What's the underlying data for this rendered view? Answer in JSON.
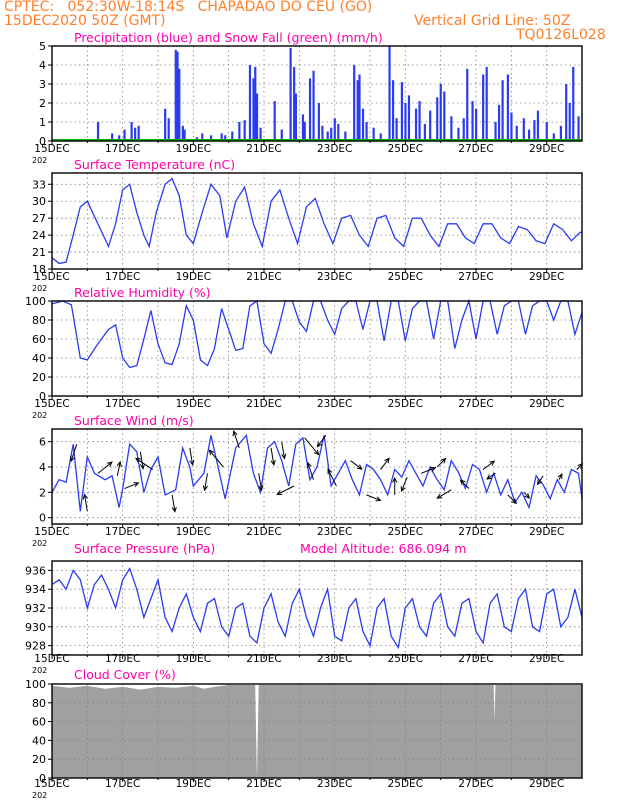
{
  "header": {
    "line1": "CPTEC:   052:30W-18:14S   CHAPADAO DO CEU (GO)",
    "line2_left": "15DEC2020 50Z (GMT)",
    "line2_right": "Vertical Grid Line: 50Z",
    "code": "TQ0126L028"
  },
  "colors": {
    "header": "#ff7f2a",
    "title": "#ff00aa",
    "series": "#2b3cf0",
    "snow": "#00b000",
    "cloud": "#a0a0a0",
    "arrow": "#000000",
    "grid": "#808080"
  },
  "x_ticks": [
    "15DEC",
    "17DEC",
    "19DEC",
    "21DEC",
    "23DEC",
    "25DEC",
    "27DEC",
    "29DEC"
  ],
  "x_tick_suffix": "202",
  "chart_data": [
    {
      "id": "precip",
      "type": "bar",
      "title": "Precipitation (blue) and Snow Fall (green) (mm/h)",
      "ylim": [
        0,
        5
      ],
      "yticks": [
        "0",
        "1",
        "2",
        "3",
        "4",
        "5"
      ],
      "xlim_days": [
        15,
        30
      ],
      "series": [
        {
          "name": "Precipitation",
          "x": [
            16.3,
            16.7,
            16.9,
            17.05,
            17.25,
            17.35,
            17.45,
            18.2,
            18.3,
            18.5,
            18.55,
            18.6,
            18.7,
            18.75,
            19.1,
            19.25,
            19.5,
            19.8,
            19.9,
            20.1,
            20.3,
            20.45,
            20.6,
            20.7,
            20.75,
            20.8,
            20.9,
            21.3,
            21.5,
            21.75,
            21.85,
            21.9,
            22.1,
            22.15,
            22.3,
            22.4,
            22.55,
            22.65,
            22.8,
            22.9,
            23.0,
            23.1,
            23.3,
            23.55,
            23.65,
            23.7,
            23.8,
            23.9,
            24.1,
            24.3,
            24.55,
            24.65,
            24.75,
            24.9,
            25.0,
            25.1,
            25.3,
            25.4,
            25.55,
            25.7,
            25.9,
            26.0,
            26.1,
            26.3,
            26.5,
            26.65,
            26.75,
            26.9,
            27.0,
            27.2,
            27.3,
            27.55,
            27.65,
            27.75,
            27.9,
            28.0,
            28.15,
            28.35,
            28.5,
            28.65,
            28.75,
            29.0,
            29.2,
            29.4,
            29.55,
            29.65,
            29.75,
            29.9
          ],
          "values": [
            1.0,
            0.4,
            0.3,
            0.6,
            1.0,
            0.7,
            0.8,
            1.7,
            1.2,
            4.8,
            4.7,
            3.8,
            0.8,
            0.6,
            0.2,
            0.4,
            0.3,
            0.4,
            0.3,
            0.5,
            1.0,
            1.1,
            4.0,
            3.3,
            3.9,
            2.5,
            0.7,
            2.1,
            0.6,
            4.9,
            3.9,
            2.5,
            1.4,
            1.0,
            3.3,
            3.7,
            2.0,
            0.8,
            0.5,
            0.7,
            1.2,
            0.9,
            0.5,
            4.0,
            3.2,
            3.5,
            1.7,
            1.0,
            0.7,
            0.4,
            5.0,
            3.2,
            1.2,
            3.1,
            2.0,
            2.4,
            1.7,
            2.1,
            0.9,
            1.6,
            2.3,
            3.0,
            2.6,
            1.3,
            0.7,
            1.2,
            3.8,
            2.1,
            1.7,
            3.5,
            3.9,
            1.0,
            1.9,
            3.2,
            3.5,
            1.5,
            0.8,
            1.2,
            0.6,
            1.1,
            1.6,
            1.0,
            0.4,
            0.8,
            3.0,
            2.0,
            3.9,
            1.3
          ]
        },
        {
          "name": "Snow Fall",
          "x": [
            15,
            30
          ],
          "values": [
            0,
            0
          ]
        }
      ]
    },
    {
      "id": "temp",
      "type": "line",
      "title": "Surface Temperature (nC)",
      "ylim": [
        18,
        35
      ],
      "yticks": [
        "18",
        "21",
        "24",
        "27",
        "30",
        "33"
      ],
      "series": [
        {
          "name": "Surface Temperature",
          "x": [
            15.0,
            15.2,
            15.4,
            15.6,
            15.8,
            16.0,
            16.3,
            16.6,
            16.8,
            17.0,
            17.2,
            17.4,
            17.6,
            17.75,
            17.95,
            18.2,
            18.4,
            18.6,
            18.8,
            19.0,
            19.25,
            19.5,
            19.75,
            19.95,
            20.2,
            20.45,
            20.7,
            20.95,
            21.2,
            21.45,
            21.7,
            21.95,
            22.2,
            22.45,
            22.7,
            22.95,
            23.2,
            23.45,
            23.7,
            23.95,
            24.2,
            24.45,
            24.7,
            24.95,
            25.2,
            25.45,
            25.7,
            25.95,
            26.2,
            26.45,
            26.7,
            26.95,
            27.2,
            27.45,
            27.7,
            27.95,
            28.2,
            28.45,
            28.7,
            28.95,
            29.2,
            29.45,
            29.7,
            29.95,
            30.0
          ],
          "values": [
            20.0,
            19.0,
            19.2,
            24.0,
            29.0,
            30.0,
            26.0,
            22.0,
            26.0,
            32.0,
            33.0,
            28.0,
            24.0,
            22.0,
            28.0,
            33.0,
            34.0,
            31.0,
            24.0,
            22.5,
            28.0,
            33.0,
            31.0,
            23.5,
            30.0,
            32.5,
            26.0,
            22.0,
            30.0,
            32.0,
            27.0,
            22.5,
            29.0,
            30.5,
            26.0,
            22.5,
            27.0,
            27.5,
            24.0,
            22.0,
            27.0,
            27.5,
            23.5,
            22.0,
            27.0,
            27.0,
            24.0,
            22.0,
            26.0,
            26.0,
            23.5,
            22.5,
            26.0,
            26.0,
            23.5,
            22.5,
            25.5,
            25.0,
            23.0,
            22.5,
            26.0,
            25.0,
            23.0,
            24.5,
            24.5
          ]
        }
      ]
    },
    {
      "id": "rh",
      "type": "line",
      "title": "Relative Humidity (%)",
      "ylim": [
        0,
        100
      ],
      "yticks": [
        "0",
        "20",
        "40",
        "60",
        "80",
        "100"
      ],
      "series": [
        {
          "name": "Relative Humidity",
          "x": [
            15.0,
            15.3,
            15.55,
            15.8,
            16.0,
            16.3,
            16.6,
            16.8,
            17.0,
            17.2,
            17.4,
            17.6,
            17.8,
            18.0,
            18.2,
            18.4,
            18.6,
            18.8,
            19.0,
            19.2,
            19.4,
            19.6,
            19.8,
            20.0,
            20.2,
            20.4,
            20.6,
            20.8,
            21.0,
            21.2,
            21.4,
            21.6,
            21.8,
            22.0,
            22.2,
            22.4,
            22.6,
            22.8,
            23.0,
            23.2,
            23.4,
            23.6,
            23.8,
            24.0,
            24.2,
            24.4,
            24.6,
            24.8,
            25.0,
            25.2,
            25.4,
            25.6,
            25.8,
            26.0,
            26.2,
            26.4,
            26.6,
            26.8,
            27.0,
            27.2,
            27.4,
            27.6,
            27.8,
            28.0,
            28.2,
            28.4,
            28.6,
            28.8,
            29.0,
            29.2,
            29.4,
            29.6,
            29.8,
            30.0
          ],
          "values": [
            97,
            100,
            96,
            40,
            38,
            55,
            70,
            75,
            40,
            30,
            32,
            60,
            90,
            55,
            35,
            33,
            55,
            95,
            80,
            38,
            32,
            50,
            92,
            70,
            48,
            50,
            95,
            100,
            55,
            45,
            70,
            100,
            100,
            78,
            68,
            100,
            100,
            80,
            65,
            92,
            100,
            100,
            70,
            100,
            100,
            58,
            100,
            100,
            58,
            92,
            100,
            100,
            60,
            100,
            100,
            50,
            80,
            100,
            60,
            100,
            100,
            65,
            95,
            100,
            100,
            65,
            95,
            100,
            100,
            80,
            100,
            100,
            65,
            88
          ]
        }
      ]
    },
    {
      "id": "wind",
      "type": "line",
      "title": "Surface Wind (m/s)",
      "ylim": [
        -0.5,
        7
      ],
      "yticks": [
        "0",
        "2",
        "4",
        "6"
      ],
      "series": [
        {
          "name": "Surface Wind",
          "x": [
            15.0,
            15.2,
            15.4,
            15.6,
            15.8,
            16.0,
            16.2,
            16.5,
            16.7,
            16.9,
            17.0,
            17.2,
            17.4,
            17.6,
            17.8,
            18.0,
            18.2,
            18.5,
            18.7,
            18.9,
            19.0,
            19.3,
            19.5,
            19.7,
            19.9,
            20.2,
            20.5,
            20.7,
            20.9,
            21.1,
            21.3,
            21.5,
            21.7,
            21.9,
            22.1,
            22.3,
            22.5,
            22.7,
            22.9,
            23.1,
            23.3,
            23.5,
            23.7,
            23.9,
            24.1,
            24.3,
            24.5,
            24.7,
            24.9,
            25.1,
            25.3,
            25.5,
            25.7,
            25.9,
            26.1,
            26.3,
            26.5,
            26.7,
            26.9,
            27.1,
            27.3,
            27.5,
            27.7,
            27.9,
            28.1,
            28.3,
            28.5,
            28.7,
            28.9,
            29.1,
            29.3,
            29.5,
            29.7,
            29.9,
            30.0
          ],
          "values": [
            2.0,
            3.0,
            2.8,
            5.8,
            0.5,
            4.8,
            3.5,
            3.0,
            3.3,
            0.8,
            2.3,
            5.8,
            5.2,
            2.0,
            3.8,
            4.8,
            1.8,
            2.2,
            5.5,
            4.0,
            2.5,
            3.5,
            6.5,
            4.0,
            1.5,
            5.5,
            6.5,
            3.5,
            2.0,
            5.5,
            6.0,
            4.5,
            2.5,
            5.8,
            6.3,
            3.0,
            4.0,
            6.5,
            2.5,
            3.5,
            4.5,
            3.0,
            1.8,
            4.2,
            3.8,
            3.0,
            1.8,
            3.8,
            3.2,
            4.5,
            3.5,
            2.5,
            4.0,
            3.0,
            2.2,
            4.5,
            3.6,
            2.3,
            4.2,
            3.8,
            2.0,
            3.5,
            1.8,
            3.0,
            1.2,
            2.0,
            0.8,
            3.3,
            2.6,
            1.5,
            3.0,
            2.0,
            3.8,
            3.5,
            1.5
          ]
        }
      ],
      "vectors": {
        "x": [
          15.7,
          16.0,
          16.3,
          16.85,
          17.05,
          17.5,
          17.85,
          18.4,
          18.9,
          19.4,
          19.85,
          20.3,
          20.85,
          21.2,
          21.5,
          21.85,
          22.15,
          22.4,
          22.75,
          23.05,
          23.45,
          23.9,
          24.3,
          24.7,
          25.05,
          25.45,
          25.9,
          26.3,
          26.8,
          27.2,
          27.55,
          27.9,
          28.35,
          28.9,
          29.35,
          29.85
        ],
        "u": [
          -0.2,
          -0.1,
          0.5,
          0.1,
          0.5,
          0.1,
          -0.6,
          0.1,
          0.1,
          -0.1,
          -0.5,
          -0.2,
          0.1,
          0.1,
          0.1,
          -0.6,
          0.5,
          -0.2,
          -0.3,
          -0.3,
          0.4,
          0.5,
          0.3,
          0.0,
          -0.2,
          0.5,
          0.3,
          -0.5,
          -0.3,
          0.4,
          -0.3,
          0.3,
          0.2,
          -0.2,
          0.1,
          0.2
        ],
        "v": [
          -0.6,
          0.6,
          0.4,
          0.5,
          0.2,
          -0.6,
          0.4,
          -0.6,
          -0.6,
          -0.6,
          0.6,
          0.6,
          -0.6,
          -0.6,
          -0.6,
          -0.3,
          -0.6,
          0.6,
          -0.4,
          0.6,
          -0.3,
          -0.2,
          0.4,
          0.6,
          -0.5,
          0.2,
          0.3,
          -0.3,
          0.3,
          0.3,
          -0.2,
          -0.3,
          -0.2,
          -0.3,
          0.2,
          0.2
        ]
      }
    },
    {
      "id": "pressure",
      "type": "line",
      "title": "Surface Pressure (hPa)",
      "subtitle": "Model Altitude: 686.094 m",
      "ylim": [
        927,
        937
      ],
      "yticks": [
        "928",
        "930",
        "932",
        "934",
        "936"
      ],
      "series": [
        {
          "name": "Surface Pressure",
          "x": [
            15.0,
            15.2,
            15.4,
            15.6,
            15.8,
            16.0,
            16.2,
            16.4,
            16.6,
            16.8,
            17.0,
            17.2,
            17.4,
            17.6,
            17.8,
            18.0,
            18.2,
            18.4,
            18.6,
            18.8,
            19.0,
            19.2,
            19.4,
            19.6,
            19.8,
            20.0,
            20.2,
            20.4,
            20.6,
            20.8,
            21.0,
            21.2,
            21.4,
            21.6,
            21.8,
            22.0,
            22.2,
            22.4,
            22.6,
            22.8,
            23.0,
            23.2,
            23.4,
            23.6,
            23.8,
            24.0,
            24.2,
            24.4,
            24.6,
            24.8,
            25.0,
            25.2,
            25.4,
            25.6,
            25.8,
            26.0,
            26.2,
            26.4,
            26.6,
            26.8,
            27.0,
            27.2,
            27.4,
            27.6,
            27.8,
            28.0,
            28.2,
            28.4,
            28.6,
            28.8,
            29.0,
            29.2,
            29.4,
            29.6,
            29.8,
            30.0
          ],
          "values": [
            934.5,
            935.0,
            934.0,
            936.0,
            935.0,
            932.0,
            934.5,
            935.5,
            934.0,
            932.0,
            935.0,
            936.2,
            934.0,
            931.0,
            933.0,
            935.0,
            931.0,
            929.5,
            932.0,
            933.5,
            931.0,
            929.5,
            932.5,
            933.0,
            930.0,
            929.0,
            932.0,
            932.5,
            929.0,
            928.3,
            932.0,
            933.5,
            930.5,
            929.0,
            932.5,
            934.0,
            931.0,
            929.0,
            932.0,
            934.0,
            929.0,
            928.5,
            932.0,
            933.0,
            929.5,
            928.0,
            932.0,
            933.0,
            929.0,
            927.8,
            932.0,
            933.0,
            930.0,
            929.0,
            932.5,
            933.5,
            930.0,
            929.0,
            932.5,
            933.0,
            929.5,
            928.3,
            932.5,
            933.5,
            930.0,
            929.5,
            933.0,
            934.0,
            930.0,
            929.5,
            933.5,
            934.0,
            930.0,
            931.0,
            934.0,
            931.0
          ]
        }
      ]
    },
    {
      "id": "cloud",
      "type": "area",
      "title": "Cloud Cover (%)",
      "ylim": [
        0,
        100
      ],
      "yticks": [
        "0",
        "20",
        "40",
        "60",
        "80",
        "100"
      ],
      "series": [
        {
          "name": "Cloud Cover",
          "x": [
            15.0,
            15.5,
            16.0,
            16.5,
            17.0,
            17.5,
            18.0,
            18.5,
            19.0,
            19.3,
            19.6,
            20.0,
            20.5,
            20.75,
            20.8,
            20.85,
            21.0,
            22.0,
            23.0,
            24.0,
            25.0,
            26.0,
            27.0,
            27.5,
            27.52,
            27.55,
            27.6,
            28.0,
            29.0,
            30.0
          ],
          "values": [
            98,
            96,
            98,
            95,
            97,
            94,
            97,
            96,
            98,
            95,
            97,
            99,
            99,
            99,
            0,
            99,
            99,
            99,
            99,
            99,
            99,
            99,
            99,
            99,
            60,
            99,
            99,
            99,
            99,
            99
          ]
        }
      ]
    }
  ]
}
